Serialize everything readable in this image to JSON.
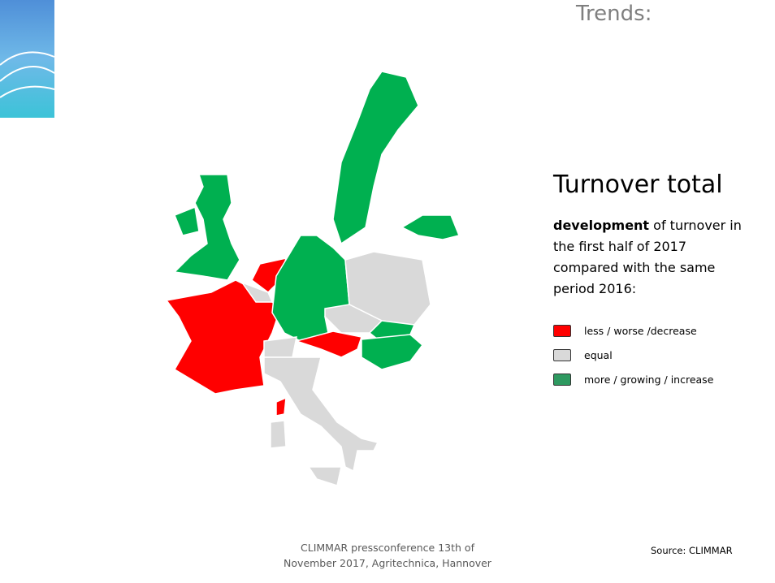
{
  "slide_title": "Trends:",
  "heading": "Turnover total",
  "description": {
    "bold": "development",
    "text": "of turnover in the first half of 2017 compared with the same period 2016:"
  },
  "legend": [
    {
      "label": "less / worse /decrease",
      "color": "#ff0000"
    },
    {
      "label": "equal",
      "color": "#d9d9d9"
    },
    {
      "label": "more / growing / increase",
      "color": "#2e9960"
    }
  ],
  "footer": "CLIMMAR pressconference 13th of November 2017, Agritechnica, Hannover",
  "source": "Source: CLIMMAR"
}
